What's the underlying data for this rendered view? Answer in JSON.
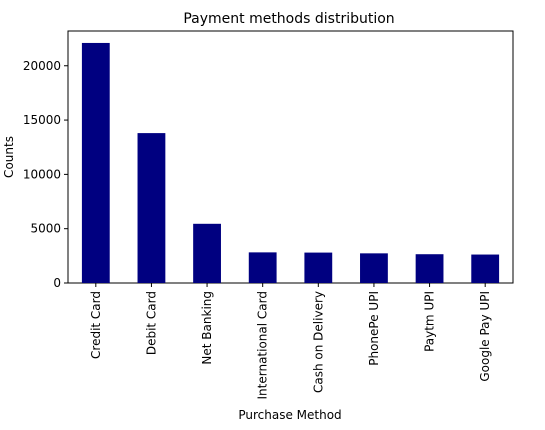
{
  "chart_data": {
    "type": "bar",
    "title": "Payment methods distribution",
    "xlabel": "Purchase Method",
    "ylabel": "Counts",
    "categories": [
      "Credit Card",
      "Debit Card",
      "Net Banking",
      "International Card",
      "Cash on Delivery",
      "PhonePe UPI",
      "Paytm UPI",
      "Google Pay UPI"
    ],
    "values": [
      22100,
      13800,
      5450,
      2820,
      2800,
      2730,
      2650,
      2620
    ],
    "ylim": [
      0,
      23200
    ],
    "yticks": [
      0,
      5000,
      10000,
      15000,
      20000
    ],
    "bar_color": "#000080",
    "grid": false,
    "legend": "none"
  }
}
